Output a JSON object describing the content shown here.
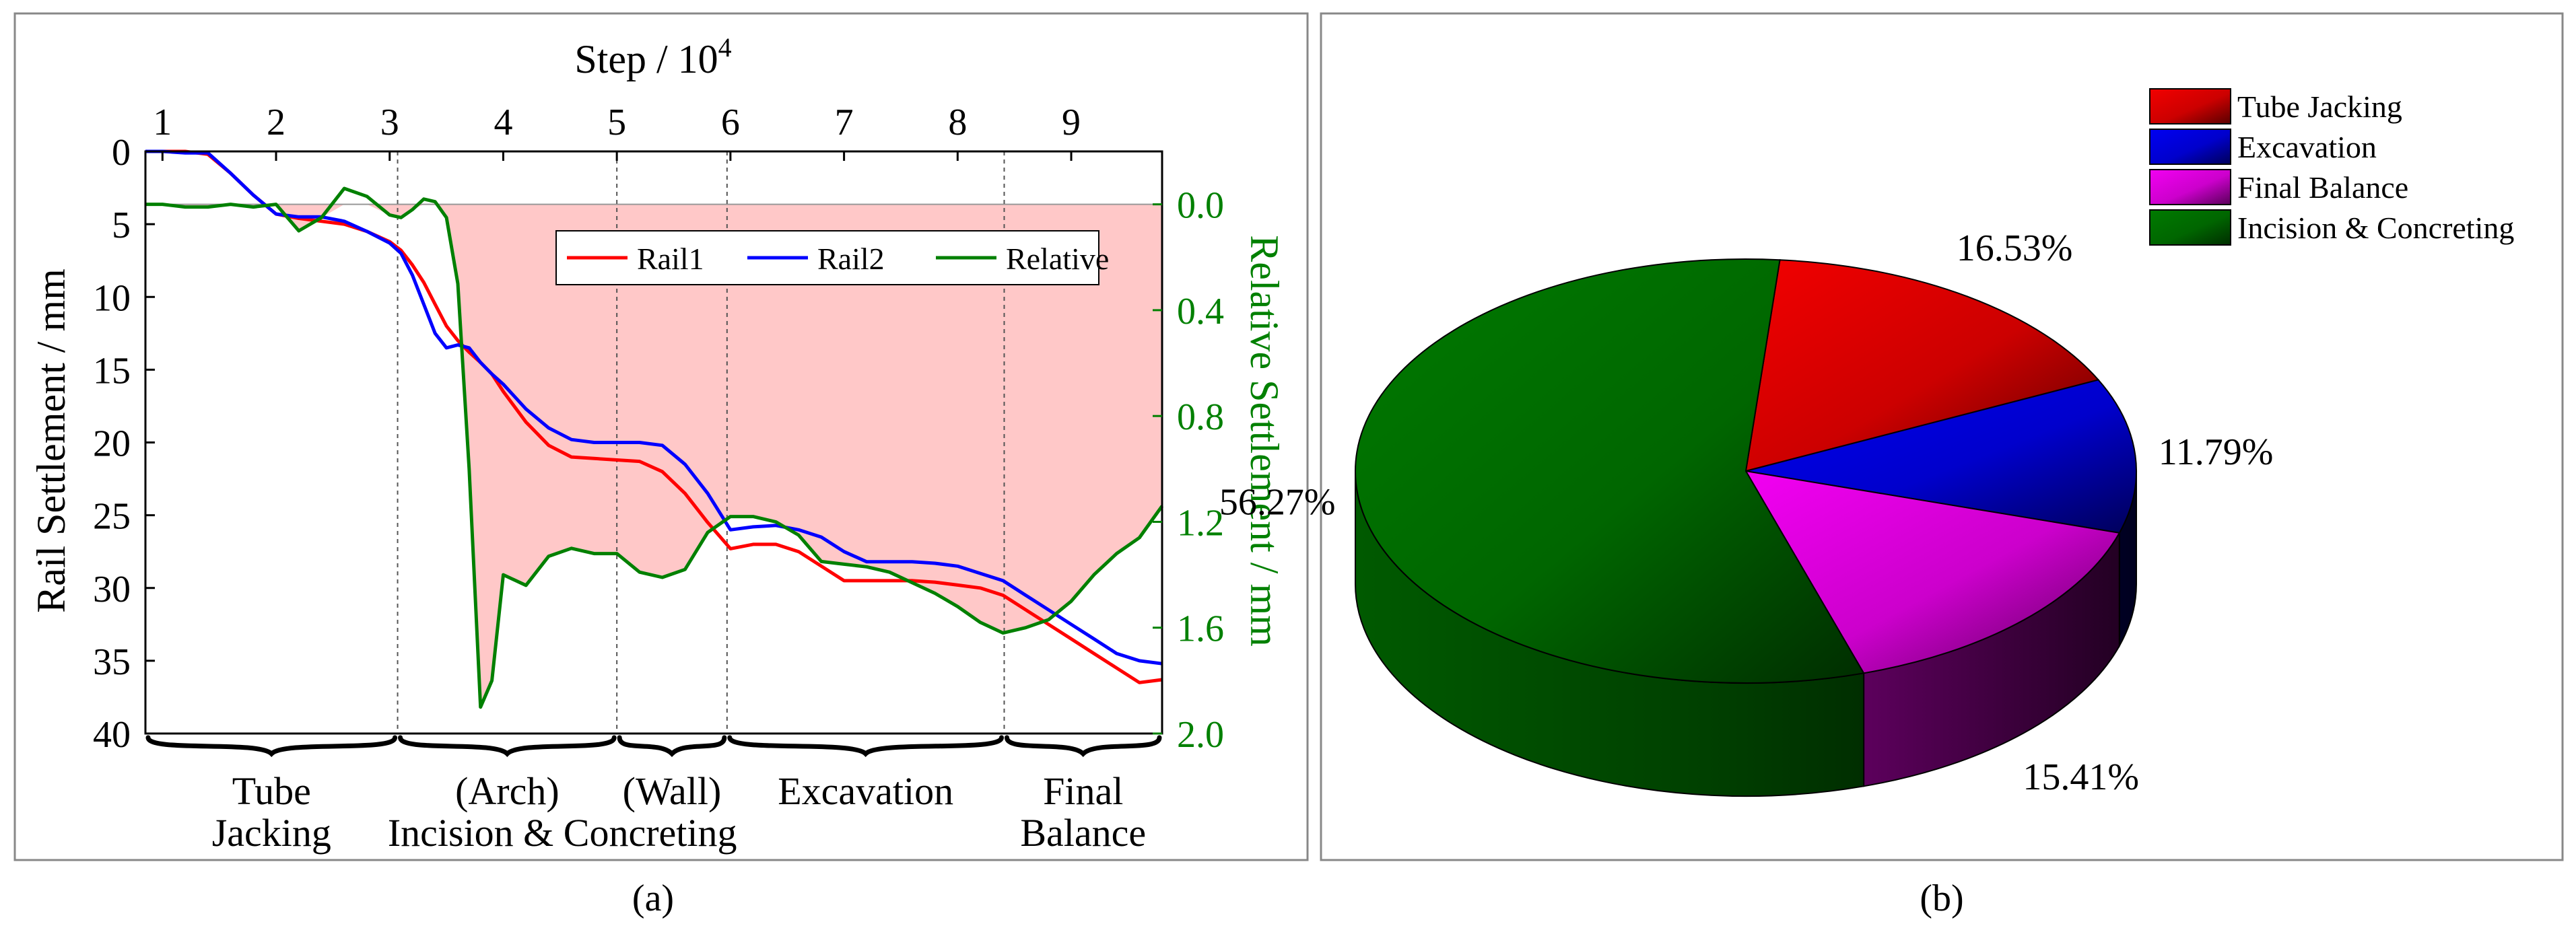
{
  "panel_a_label": "(a)",
  "panel_b_label": "(b)",
  "chart_data": [
    {
      "type": "line",
      "title": "",
      "top_axis": {
        "label": "Step / 10",
        "label_sup": "4",
        "ticks": [
          "1",
          "2",
          "3",
          "4",
          "5",
          "6",
          "7",
          "8",
          "9"
        ],
        "tick_values": [
          1,
          2,
          3,
          4,
          5,
          6,
          7,
          8,
          9
        ],
        "range": [
          0.85,
          9.8
        ]
      },
      "ylabel": "Rail Settlement / mm",
      "ylim": [
        0,
        40
      ],
      "yticks": [
        0,
        5,
        10,
        15,
        20,
        25,
        30,
        35,
        40
      ],
      "y2label": "Relative Settlement / mm",
      "y2lim": [
        -0.2,
        2.0
      ],
      "y2ticks": [
        "0.0",
        "0.4",
        "0.8",
        "1.2",
        "1.6",
        "2.0"
      ],
      "y2tick_values": [
        0.0,
        0.4,
        0.8,
        1.2,
        1.6,
        2.0
      ],
      "x": [
        0.85,
        1.0,
        1.2,
        1.4,
        1.6,
        1.8,
        2.0,
        2.2,
        2.4,
        2.6,
        2.8,
        3.0,
        3.1,
        3.2,
        3.3,
        3.4,
        3.5,
        3.6,
        3.7,
        3.8,
        3.9,
        4.0,
        4.2,
        4.4,
        4.6,
        4.8,
        5.0,
        5.2,
        5.4,
        5.6,
        5.8,
        6.0,
        6.2,
        6.4,
        6.6,
        6.8,
        7.0,
        7.2,
        7.4,
        7.6,
        7.8,
        8.0,
        8.2,
        8.4,
        8.6,
        8.8,
        9.0,
        9.2,
        9.4,
        9.6,
        9.8
      ],
      "series": [
        {
          "name": "Rail1",
          "color": "#ff0000",
          "values": [
            0.0,
            0.0,
            0.0,
            0.2,
            1.5,
            3.0,
            4.3,
            4.6,
            4.8,
            5.0,
            5.5,
            6.2,
            6.8,
            7.8,
            9.0,
            10.5,
            12.0,
            13.0,
            13.8,
            14.5,
            15.3,
            16.5,
            18.6,
            20.2,
            21.0,
            21.1,
            21.2,
            21.3,
            22.0,
            23.5,
            25.5,
            27.3,
            27.0,
            27.0,
            27.5,
            28.5,
            29.5,
            29.5,
            29.5,
            29.5,
            29.6,
            29.8,
            30.0,
            30.5,
            31.5,
            32.5,
            33.5,
            34.5,
            35.5,
            36.5,
            36.3
          ]
        },
        {
          "name": "Rail2",
          "color": "#0000ff",
          "values": [
            0.0,
            0.0,
            0.1,
            0.1,
            1.5,
            3.0,
            4.3,
            4.5,
            4.5,
            4.8,
            5.5,
            6.3,
            7.0,
            8.5,
            10.5,
            12.5,
            13.5,
            13.3,
            13.5,
            14.5,
            15.3,
            16.0,
            17.7,
            19.0,
            19.8,
            20.0,
            20.0,
            20.0,
            20.2,
            21.5,
            23.5,
            26.0,
            25.8,
            25.7,
            26.0,
            26.5,
            27.5,
            28.2,
            28.2,
            28.2,
            28.3,
            28.5,
            29.0,
            29.5,
            30.5,
            31.5,
            32.5,
            33.5,
            34.5,
            35.0,
            35.2
          ]
        },
        {
          "name": "Relative",
          "color": "#008000",
          "axis": "right",
          "values": [
            0.0,
            0.0,
            0.01,
            0.01,
            0.0,
            0.01,
            0.0,
            0.1,
            0.05,
            -0.06,
            -0.03,
            0.04,
            0.05,
            0.02,
            -0.02,
            -0.01,
            0.05,
            0.3,
            1.0,
            1.9,
            1.8,
            1.4,
            1.44,
            1.33,
            1.3,
            1.32,
            1.32,
            1.39,
            1.41,
            1.38,
            1.24,
            1.18,
            1.18,
            1.2,
            1.25,
            1.35,
            1.36,
            1.37,
            1.39,
            1.43,
            1.47,
            1.52,
            1.58,
            1.62,
            1.6,
            1.57,
            1.5,
            1.4,
            1.32,
            1.26,
            1.14
          ]
        }
      ],
      "shaded_area": {
        "between": "Relative",
        "and_baseline": 0.0,
        "color": "#ffc8c8"
      },
      "phase_boundaries": [
        3.07,
        5.0,
        5.97,
        8.41
      ],
      "phases": [
        {
          "label_lines": [
            "Tube",
            "Jacking"
          ],
          "from": 0.85,
          "to": 3.07
        },
        {
          "label_lines": [
            "(Arch)"
          ],
          "from": 3.07,
          "to": 5.0
        },
        {
          "label_lines": [
            "(Wall)"
          ],
          "from": 5.0,
          "to": 5.97
        },
        {
          "label_lines": [
            "Excavation"
          ],
          "from": 5.97,
          "to": 8.41
        },
        {
          "label_lines": [
            "Final",
            "Balance"
          ],
          "from": 8.41,
          "to": 9.8
        }
      ],
      "shared_phase_label": "Incision & Concreting",
      "legend": {
        "placement": "top-right",
        "entries": [
          "Rail1",
          "Rail2",
          "Relative"
        ]
      }
    },
    {
      "type": "pie",
      "title": "",
      "categories": [
        "Tube Jacking",
        "Excavation",
        "Final Balance",
        "Incision & Concreting"
      ],
      "values": [
        16.53,
        11.79,
        15.41,
        56.27
      ],
      "labels": [
        "16.53%",
        "11.79%",
        "15.41%",
        "56.27%"
      ],
      "colors": [
        "#ff0000",
        "#0000ff",
        "#ff00ff",
        "#008000"
      ],
      "legend": {
        "placement": "top-right",
        "entries": [
          "Tube Jacking",
          "Excavation",
          "Final Balance",
          "Incision & Concreting"
        ]
      }
    }
  ]
}
